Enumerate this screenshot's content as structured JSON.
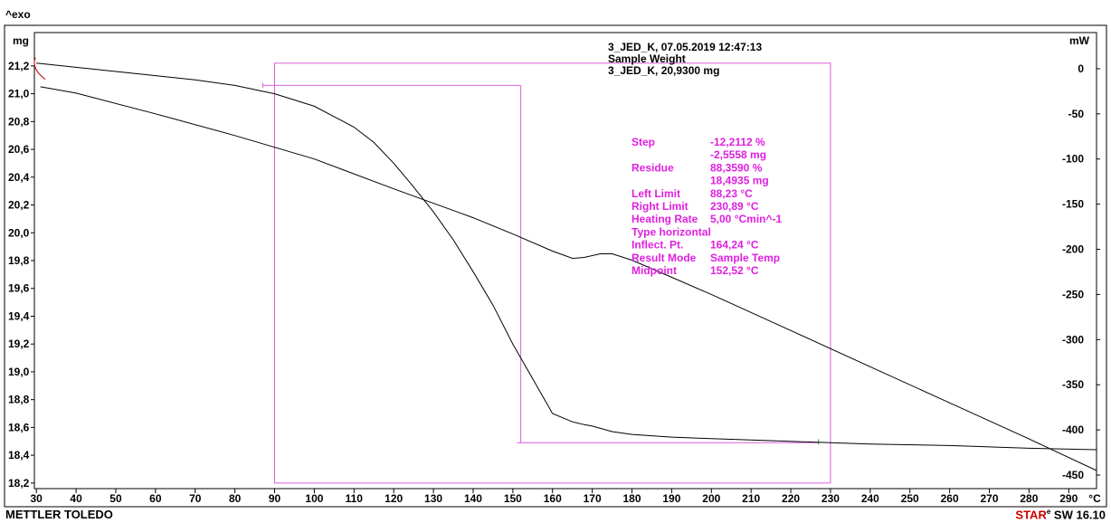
{
  "chart_data": {
    "type": "line",
    "exo_label": "^exo",
    "left_unit": "mg",
    "right_unit": "mW",
    "x_unit": "°C",
    "x_ticks": [
      30,
      40,
      50,
      60,
      70,
      80,
      90,
      100,
      110,
      120,
      130,
      140,
      150,
      160,
      170,
      180,
      190,
      200,
      210,
      220,
      230,
      240,
      250,
      260,
      270,
      280,
      290
    ],
    "xlim": [
      29.5,
      297
    ],
    "y_left_ticks": [
      "21,2",
      "21,0",
      "20,8",
      "20,6",
      "20,4",
      "20,2",
      "20,0",
      "19,8",
      "19,6",
      "19,4",
      "19,2",
      "19,0",
      "18,8",
      "18,6",
      "18,4",
      "18,2"
    ],
    "y_left_values": [
      21.2,
      21.0,
      20.8,
      20.6,
      20.4,
      20.2,
      20.0,
      19.8,
      19.6,
      19.4,
      19.2,
      19.0,
      18.8,
      18.6,
      18.4,
      18.2
    ],
    "ylim_left": [
      18.16,
      21.44
    ],
    "y_right_ticks": [
      "0",
      "-50",
      "-100",
      "-150",
      "-200",
      "-250",
      "-300",
      "-350",
      "-400",
      "-450"
    ],
    "y_right_values": [
      0,
      -50,
      -100,
      -150,
      -200,
      -250,
      -300,
      -350,
      -400,
      -450
    ],
    "ylim_right": [
      -465,
      40
    ],
    "series": [
      {
        "axis": "left",
        "x": [
          30,
          40,
          50,
          60,
          70,
          80,
          90,
          100,
          110,
          115,
          120,
          125,
          130,
          135,
          140,
          145,
          150,
          155,
          160,
          165,
          168,
          170,
          175,
          180,
          190,
          200,
          220,
          240,
          260,
          280,
          297
        ],
        "y": [
          21.22,
          21.19,
          21.16,
          21.13,
          21.1,
          21.06,
          21.0,
          20.91,
          20.76,
          20.65,
          20.5,
          20.33,
          20.15,
          19.95,
          19.72,
          19.48,
          19.2,
          18.95,
          18.7,
          18.64,
          18.62,
          18.61,
          18.57,
          18.55,
          18.53,
          18.52,
          18.5,
          18.48,
          18.47,
          18.45,
          18.44
        ]
      },
      {
        "axis": "right",
        "x": [
          31,
          40,
          60,
          80,
          100,
          120,
          140,
          150,
          160,
          165,
          168,
          172,
          175,
          180,
          200,
          220,
          240,
          260,
          280,
          297
        ],
        "y": [
          -20,
          -27,
          -50,
          -74,
          -100,
          -133,
          -165,
          -183,
          -202,
          -210,
          -209,
          -205,
          -205,
          -212,
          -250,
          -290,
          -330,
          -370,
          -410,
          -445
        ]
      }
    ],
    "header_lines": [
      "3_JED_K, 07.05.2019 12:47:13",
      "Sample Weight",
      "3_JED_K, 20,9300 mg"
    ],
    "result_box": [
      {
        "label": "Step",
        "value": "-12,2112 %"
      },
      {
        "label": "",
        "value": "-2,5558 mg"
      },
      {
        "label": "Residue",
        "value": "88,3590 %"
      },
      {
        "label": "",
        "value": "18,4935 mg"
      },
      {
        "label": "Left Limit",
        "value": "88,23 °C"
      },
      {
        "label": "Right Limit",
        "value": "230,89 °C"
      },
      {
        "label": "Heating Rate",
        "value": "5,00 °Cmin^-1"
      },
      {
        "label": "Type horizontal",
        "value": ""
      },
      {
        "label": "Inflect. Pt.",
        "value": "164,24 °C"
      },
      {
        "label": "Result Mode",
        "value": "Sample Temp"
      },
      {
        "label": "Midpoint",
        "value": "152,52 °C"
      }
    ],
    "evaluation": {
      "rect_x": [
        90,
        230
      ],
      "rect_y": [
        18.2,
        21.22
      ],
      "upper_baseline": {
        "x": [
          87,
          152
        ],
        "y": 21.06
      },
      "lower_baseline": {
        "x": [
          151,
          227
        ],
        "y": 18.49
      },
      "midpoint_x": 152
    },
    "colors": {
      "curve": "#000000",
      "evaluation": "#d95fd9",
      "result_text": "#e020e0",
      "marker_red": "#cc2222",
      "marker_green": "#20a020"
    }
  },
  "footer": {
    "brand": "METTLER TOLEDO",
    "software_star": "STAR",
    "software_mark": "e",
    "software_version": " SW 16.10"
  }
}
